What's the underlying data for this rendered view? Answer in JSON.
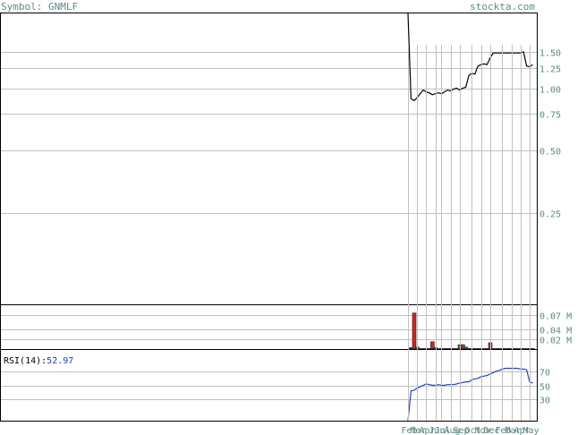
{
  "header": {
    "symbol_label": "Symbol: GNMLF",
    "brand": "stockta.com"
  },
  "rsi": {
    "label": "RSI(14):",
    "value": "52.97"
  },
  "colors": {
    "axis": "#000000",
    "grid": "#c0c0c0",
    "tick_text": "#5c8a8a",
    "price_line": "#000000",
    "rsi_line": "#1f3fbf",
    "rsi_value": "#1f3fbf",
    "volume_up": "#2e8b2e",
    "volume_down": "#dd2222"
  },
  "chart_data": [
    {
      "type": "line",
      "name": "price",
      "scale": "log",
      "ylim": [
        0.09,
        2.3
      ],
      "y_ticks": [
        1.5,
        1.25,
        1.0,
        0.75,
        0.5,
        0.25
      ],
      "y_tick_labels": [
        "1.50",
        "1.25",
        "1.00",
        "0.75",
        "0.50",
        "0.25"
      ],
      "x_ticks": [
        "Feb",
        "Mar",
        "Apr",
        "Jun",
        "Jul",
        "Aug",
        "Sep",
        "Oct",
        "Nov",
        "Dec",
        "Feb",
        "Mar",
        "Apr",
        "May"
      ],
      "x_tick_positions": [
        0,
        3,
        6,
        9,
        11,
        14,
        17,
        21,
        24,
        27,
        31,
        34,
        37,
        40
      ],
      "x": [
        0,
        1,
        2,
        3,
        4,
        5,
        6,
        7,
        8,
        9,
        10,
        11,
        12,
        13,
        14,
        15,
        16,
        17,
        18,
        19,
        20,
        21,
        22,
        23,
        24,
        25,
        26,
        27,
        28,
        29,
        30,
        31,
        32,
        33,
        34,
        35,
        36,
        37,
        38,
        39,
        40,
        41
      ],
      "y": [
        2.3,
        0.89,
        0.87,
        0.9,
        0.94,
        0.98,
        0.96,
        0.95,
        0.93,
        0.94,
        0.95,
        0.94,
        0.96,
        0.98,
        0.97,
        0.99,
        1.0,
        0.98,
        1.0,
        1.01,
        1.15,
        1.18,
        1.17,
        1.28,
        1.3,
        1.31,
        1.3,
        1.4,
        1.48,
        1.48,
        1.48,
        1.48,
        1.48,
        1.48,
        1.48,
        1.48,
        1.48,
        1.48,
        1.5,
        1.28,
        1.27,
        1.3
      ]
    },
    {
      "type": "bar",
      "name": "volume",
      "unit": "M",
      "ylim": [
        0,
        0.09
      ],
      "y_ticks": [
        0.07,
        0.04,
        0.02
      ],
      "y_tick_labels": [
        "0.07 M",
        "0.04 M",
        "0.02 M"
      ],
      "bars": [
        {
          "x": 1,
          "value": 0.003,
          "direction": "up"
        },
        {
          "x": 2,
          "value": 0.074,
          "direction": "down"
        },
        {
          "x": 3,
          "value": 0.004,
          "direction": "up"
        },
        {
          "x": 8,
          "value": 0.015,
          "direction": "down"
        },
        {
          "x": 9,
          "value": 0.003,
          "direction": "up"
        },
        {
          "x": 17,
          "value": 0.009,
          "direction": "up"
        },
        {
          "x": 18,
          "value": 0.009,
          "direction": "down"
        },
        {
          "x": 19,
          "value": 0.004,
          "direction": "up"
        },
        {
          "x": 27,
          "value": 0.013,
          "direction": "down"
        }
      ]
    },
    {
      "type": "line",
      "name": "RSI(14)",
      "ylim": [
        0,
        100
      ],
      "y_ticks": [
        70,
        50,
        30
      ],
      "y_tick_labels": [
        "70",
        "50",
        "30"
      ],
      "x": [
        0,
        1,
        2,
        3,
        4,
        5,
        6,
        7,
        8,
        9,
        10,
        11,
        12,
        13,
        14,
        15,
        16,
        17,
        18,
        19,
        20,
        21,
        22,
        23,
        24,
        25,
        26,
        27,
        28,
        29,
        30,
        31,
        32,
        33,
        34,
        35,
        36,
        37,
        38,
        39,
        40,
        41
      ],
      "y": [
        0,
        42,
        43,
        46,
        48,
        50,
        52,
        51,
        50,
        50,
        51,
        50,
        50,
        51,
        51,
        51,
        52,
        53,
        54,
        55,
        55,
        58,
        59,
        60,
        62,
        63,
        64,
        66,
        68,
        70,
        71,
        73,
        74,
        74,
        74,
        74,
        74,
        73,
        73,
        72,
        55,
        53
      ]
    }
  ]
}
